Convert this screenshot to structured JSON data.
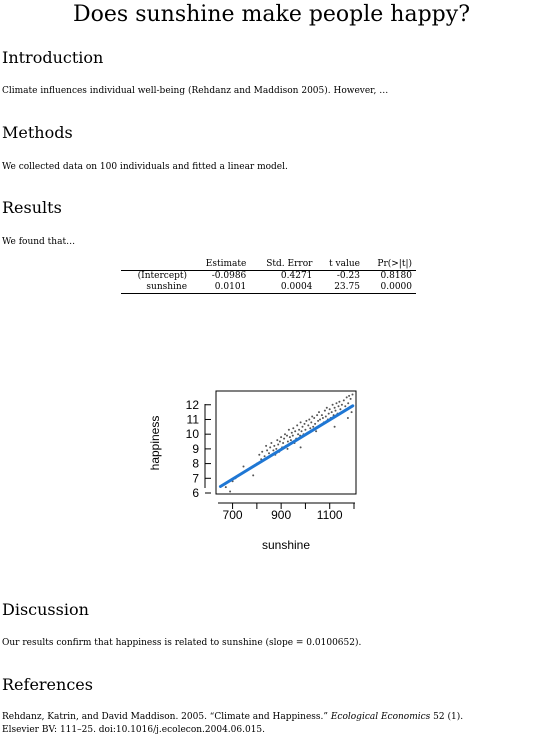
{
  "title": "Does sunshine make people happy?",
  "sections": {
    "introduction": {
      "heading": "Introduction",
      "text": "Climate influences individual well-being (Rehdanz and Maddison 2005). However, …"
    },
    "methods": {
      "heading": "Methods",
      "text": "We collected data on 100 individuals and fitted a linear model."
    },
    "results": {
      "heading": "Results",
      "text": "We found that…"
    },
    "discussion": {
      "heading": "Discussion",
      "text": "Our results confirm that happiness is related to sunshine (slope = 0.0100652)."
    },
    "references": {
      "heading": "References",
      "ref1_authors": "Rehdanz, Katrin, and David Maddison. 2005. “Climate and Happiness.”",
      "ref1_journal": "Ecological Economics",
      "ref1_issue": "52 (1).",
      "ref1_line2": "Elsevier BV: 111–25. doi:10.1016/j.ecolecon.2004.06.015."
    }
  },
  "table": {
    "headers": [
      "",
      "Estimate",
      "Std. Error",
      "t value",
      "Pr(>|t|)"
    ],
    "rows": [
      [
        "(Intercept)",
        "-0.0986",
        "0.4271",
        "-0.23",
        "0.8180"
      ],
      [
        "sunshine",
        "0.0101",
        "0.0004",
        "23.75",
        "0.0000"
      ]
    ]
  },
  "chart_data": {
    "type": "scatter",
    "xlabel": "sunshine",
    "ylabel": "happiness",
    "xlim": [
      640,
      1200
    ],
    "ylim": [
      6,
      12.8
    ],
    "xticks": [
      700,
      900,
      1100
    ],
    "yticks": [
      6,
      7,
      8,
      9,
      10,
      11,
      12
    ],
    "fit": {
      "intercept": -0.0986,
      "slope": 0.0100652,
      "color": "#1f77d4"
    },
    "points": [
      [
        672,
        6.4
      ],
      [
        690,
        6.1
      ],
      [
        700,
        6.8
      ],
      [
        712,
        7.0
      ],
      [
        745,
        7.8
      ],
      [
        785,
        7.2
      ],
      [
        800,
        8.0
      ],
      [
        810,
        8.6
      ],
      [
        818,
        8.3
      ],
      [
        822,
        8.8
      ],
      [
        832,
        8.5
      ],
      [
        838,
        9.2
      ],
      [
        842,
        8.9
      ],
      [
        850,
        8.7
      ],
      [
        855,
        9.1
      ],
      [
        860,
        9.4
      ],
      [
        868,
        8.9
      ],
      [
        872,
        9.2
      ],
      [
        876,
        8.6
      ],
      [
        880,
        9.0
      ],
      [
        884,
        9.6
      ],
      [
        888,
        9.3
      ],
      [
        892,
        8.8
      ],
      [
        895,
        9.5
      ],
      [
        900,
        9.8
      ],
      [
        904,
        9.1
      ],
      [
        908,
        9.4
      ],
      [
        912,
        9.7
      ],
      [
        916,
        10.0
      ],
      [
        920,
        9.2
      ],
      [
        924,
        9.9
      ],
      [
        928,
        9.5
      ],
      [
        932,
        10.3
      ],
      [
        936,
        9.8
      ],
      [
        940,
        9.6
      ],
      [
        944,
        10.1
      ],
      [
        948,
        9.9
      ],
      [
        950,
        10.4
      ],
      [
        955,
        9.4
      ],
      [
        958,
        10.2
      ],
      [
        962,
        9.7
      ],
      [
        966,
        10.6
      ],
      [
        970,
        10.0
      ],
      [
        974,
        10.3
      ],
      [
        978,
        9.9
      ],
      [
        980,
        10.8
      ],
      [
        984,
        10.2
      ],
      [
        988,
        10.5
      ],
      [
        992,
        10.0
      ],
      [
        996,
        10.7
      ],
      [
        1000,
        10.3
      ],
      [
        1004,
        10.9
      ],
      [
        1008,
        10.1
      ],
      [
        1012,
        10.6
      ],
      [
        1016,
        11.0
      ],
      [
        1020,
        10.4
      ],
      [
        1024,
        10.8
      ],
      [
        1028,
        11.2
      ],
      [
        1032,
        10.5
      ],
      [
        1036,
        11.1
      ],
      [
        1040,
        10.7
      ],
      [
        1044,
        10.2
      ],
      [
        1048,
        11.3
      ],
      [
        1052,
        10.9
      ],
      [
        1056,
        11.5
      ],
      [
        1060,
        11.0
      ],
      [
        1064,
        10.6
      ],
      [
        1068,
        11.3
      ],
      [
        1072,
        11.1
      ],
      [
        1076,
        10.8
      ],
      [
        1080,
        11.6
      ],
      [
        1084,
        11.2
      ],
      [
        1088,
        11.8
      ],
      [
        1092,
        11.0
      ],
      [
        1096,
        11.4
      ],
      [
        1100,
        11.7
      ],
      [
        1104,
        11.1
      ],
      [
        1108,
        11.5
      ],
      [
        1112,
        12.0
      ],
      [
        1116,
        11.3
      ],
      [
        1120,
        11.8
      ],
      [
        1124,
        11.6
      ],
      [
        1128,
        12.1
      ],
      [
        1132,
        11.4
      ],
      [
        1136,
        11.9
      ],
      [
        1140,
        12.2
      ],
      [
        1144,
        11.7
      ],
      [
        1150,
        12.0
      ],
      [
        1158,
        12.3
      ],
      [
        1164,
        11.9
      ],
      [
        1170,
        12.5
      ],
      [
        1176,
        12.1
      ],
      [
        1180,
        12.6
      ],
      [
        1186,
        12.4
      ],
      [
        1190,
        11.5
      ],
      [
        1194,
        12.7
      ],
      [
        1175,
        11.1
      ],
      [
        1120,
        10.5
      ],
      [
        980,
        9.1
      ],
      [
        926,
        9.0
      ]
    ]
  }
}
